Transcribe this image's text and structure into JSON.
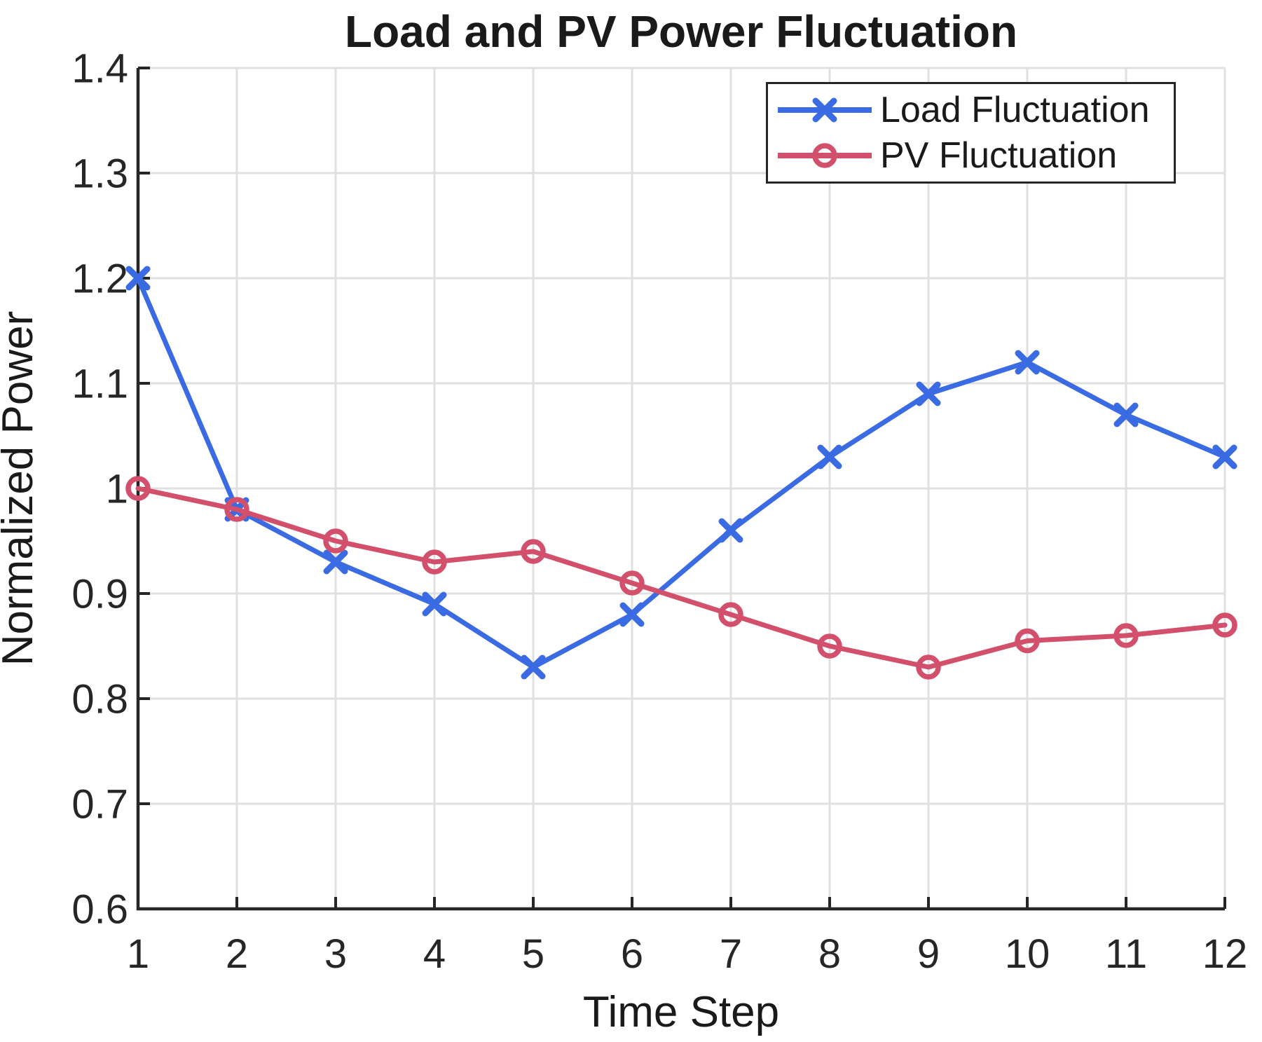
{
  "chart_data": {
    "type": "line",
    "title": "Load and PV Power Fluctuation",
    "xlabel": "Time Step",
    "ylabel": "Normalized Power",
    "x": [
      1,
      2,
      3,
      4,
      5,
      6,
      7,
      8,
      9,
      10,
      11,
      12
    ],
    "xlim": [
      1,
      12
    ],
    "ylim": [
      0.6,
      1.4
    ],
    "xtick_labels": [
      "1",
      "2",
      "3",
      "4",
      "5",
      "6",
      "7",
      "8",
      "9",
      "10",
      "11",
      "12"
    ],
    "ytick_labels": [
      "0.6",
      "0.7",
      "0.8",
      "0.9",
      "1",
      "1.1",
      "1.2",
      "1.3",
      "1.4"
    ],
    "grid": true,
    "legend_position": "top-right",
    "series": [
      {
        "name": "Load Fluctuation",
        "marker": "x",
        "color": "#3A6BE2",
        "values": [
          1.2,
          0.98,
          0.93,
          0.89,
          0.83,
          0.88,
          0.96,
          1.03,
          1.09,
          1.12,
          1.07,
          1.03
        ]
      },
      {
        "name": "PV Fluctuation",
        "marker": "o",
        "color": "#D3506C",
        "values": [
          1.0,
          0.98,
          0.95,
          0.93,
          0.94,
          0.91,
          0.88,
          0.85,
          0.83,
          0.855,
          0.86,
          0.87
        ]
      }
    ],
    "colors": {
      "grid": "#E0E0E0",
      "axis": "#262626",
      "text": "#1A1A1A",
      "background": "#FFFFFF"
    }
  }
}
